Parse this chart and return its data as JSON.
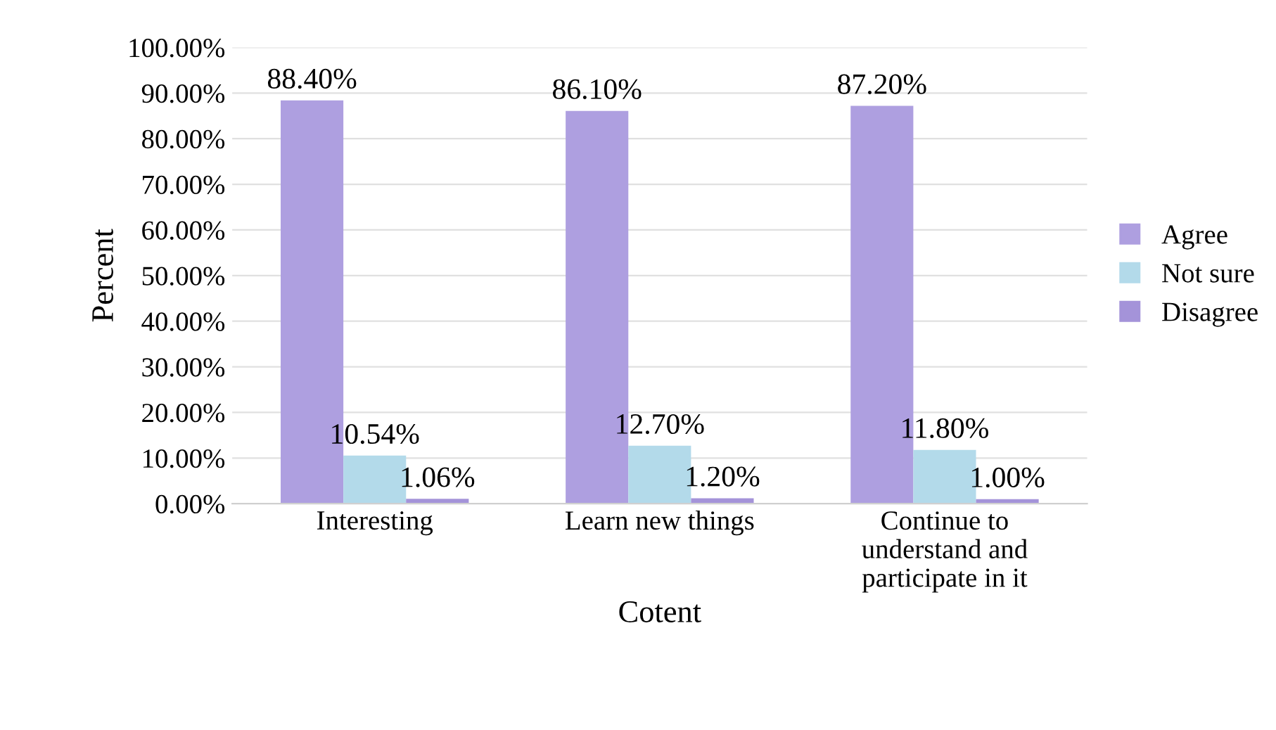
{
  "chart_data": {
    "type": "bar",
    "xlabel": "Cotent",
    "ylabel": "Percent",
    "categories": [
      "Interesting",
      "Learn new things",
      "Continue to\nunderstand and\nparticipate in it"
    ],
    "series": [
      {
        "name": "Agree",
        "color": "#ae9fe0",
        "values": [
          88.4,
          86.1,
          87.2
        ],
        "value_labels": [
          "88.40%",
          "86.10%",
          "87.20%"
        ]
      },
      {
        "name": "Not sure",
        "color": "#b3daea",
        "values": [
          10.54,
          12.7,
          11.8
        ],
        "value_labels": [
          "10.54%",
          "12.70%",
          "11.80%"
        ]
      },
      {
        "name": "Disagree",
        "color": "#a493d9",
        "values": [
          1.06,
          1.2,
          1.0
        ],
        "value_labels": [
          "1.06%",
          "1.20%",
          "1.00%"
        ]
      }
    ],
    "ylim": [
      0,
      100
    ],
    "yticks": [
      {
        "value": 0,
        "label": "0.00%"
      },
      {
        "value": 10,
        "label": "10.00%"
      },
      {
        "value": 20,
        "label": "20.00%"
      },
      {
        "value": 30,
        "label": "30.00%"
      },
      {
        "value": 40,
        "label": "40.00%"
      },
      {
        "value": 50,
        "label": "50.00%"
      },
      {
        "value": 60,
        "label": "60.00%"
      },
      {
        "value": 70,
        "label": "70.00%"
      },
      {
        "value": 80,
        "label": "80.00%"
      },
      {
        "value": 90,
        "label": "90.00%"
      },
      {
        "value": 100,
        "label": "100.00%"
      }
    ],
    "grid": "y",
    "legend": "right"
  }
}
